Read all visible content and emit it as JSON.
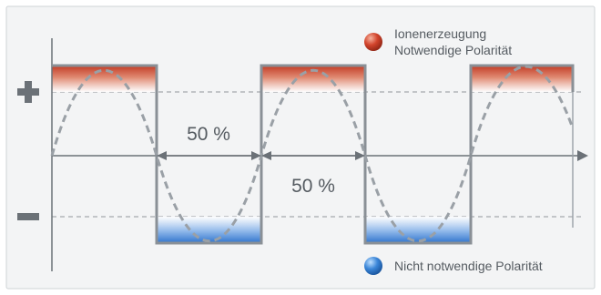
{
  "legend": {
    "positive_line1": "Ionenerzeugung",
    "positive_line2": "Notwendige Polarität",
    "negative": "Nicht notwendige Polarität"
  },
  "annotations": {
    "duty_left": "50 %",
    "duty_right": "50 %"
  },
  "colors": {
    "positive": "#c9402a",
    "negative": "#3a7fd0",
    "wave": "#9aa0a6",
    "axis": "#6b7177",
    "frame_bg": "#f3f4f5"
  },
  "icons": {
    "plus": "plus-sign-icon",
    "minus": "minus-sign-icon",
    "positive_dot": "red-sphere-icon",
    "negative_dot": "blue-sphere-icon"
  }
}
